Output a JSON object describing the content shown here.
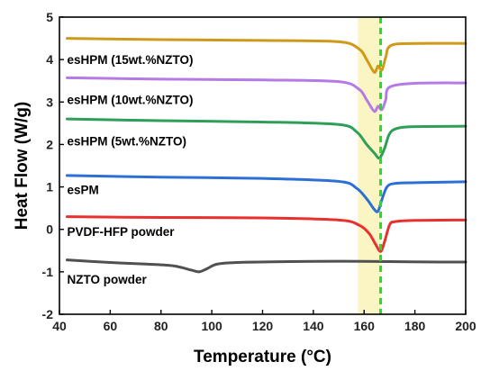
{
  "chart_data": {
    "type": "line",
    "xlabel": "Temperature (°C)",
    "ylabel": "Heat Flow (W/g)",
    "xlim": [
      40,
      200
    ],
    "ylim": [
      -2,
      5
    ],
    "xticks": [
      40,
      60,
      80,
      100,
      120,
      140,
      160,
      180,
      200
    ],
    "yticks": [
      -2,
      -1,
      0,
      1,
      2,
      3,
      4,
      5
    ],
    "grid": false,
    "legend": "none",
    "highlight_band": {
      "x": [
        157.5,
        166.5
      ],
      "color": "#fbf5c4"
    },
    "reference_line": {
      "x": 166.5,
      "color": "#22dd22",
      "style": "dashed"
    },
    "series": [
      {
        "name": "NZTO powder",
        "color": "#505050",
        "x": [
          43,
          60,
          75,
          85,
          92,
          95,
          98,
          102,
          110,
          130,
          150,
          170,
          190,
          200
        ],
        "y": [
          -0.72,
          -0.78,
          -0.82,
          -0.86,
          -0.96,
          -1.0,
          -0.93,
          -0.82,
          -0.78,
          -0.76,
          -0.75,
          -0.76,
          -0.77,
          -0.77
        ]
      },
      {
        "name": "PVDF-HFP powder",
        "color": "#e8312f",
        "x": [
          43,
          80,
          120,
          150,
          158,
          162,
          164.5,
          166.5,
          168,
          170,
          172,
          180,
          200
        ],
        "y": [
          0.3,
          0.28,
          0.27,
          0.22,
          0.1,
          -0.1,
          -0.35,
          -0.52,
          -0.3,
          0.1,
          0.18,
          0.21,
          0.22
        ]
      },
      {
        "name": "esPM",
        "color": "#2e6fd6",
        "x": [
          43,
          80,
          120,
          150,
          157,
          161,
          164,
          165.5,
          167,
          169,
          172,
          180,
          200
        ],
        "y": [
          1.27,
          1.23,
          1.2,
          1.13,
          0.97,
          0.72,
          0.47,
          0.43,
          0.7,
          1.0,
          1.08,
          1.1,
          1.12
        ]
      },
      {
        "name": "esHPM (5wt.%NZTO)",
        "color": "#2f9e58",
        "x": [
          43,
          80,
          120,
          150,
          157,
          161,
          164,
          166,
          168,
          170,
          173,
          180,
          200
        ],
        "y": [
          2.6,
          2.56,
          2.53,
          2.47,
          2.3,
          2.0,
          1.8,
          1.68,
          1.9,
          2.25,
          2.38,
          2.42,
          2.43
        ]
      },
      {
        "name": "esHPM (10wt.%NZTO)",
        "color": "#b47ae6",
        "x": [
          43,
          80,
          120,
          150,
          158,
          161,
          164,
          165.5,
          167,
          168.5,
          170,
          180,
          200
        ],
        "y": [
          3.57,
          3.54,
          3.52,
          3.48,
          3.3,
          3.05,
          2.78,
          2.9,
          2.82,
          3.05,
          3.35,
          3.44,
          3.45
        ]
      },
      {
        "name": "esHPM (15wt.%NZTO)",
        "color": "#cf9a1a",
        "x": [
          43,
          80,
          120,
          150,
          158,
          161,
          164,
          165.5,
          167,
          168.5,
          170.5,
          180,
          200
        ],
        "y": [
          4.5,
          4.47,
          4.45,
          4.42,
          4.25,
          4.0,
          3.7,
          3.85,
          3.75,
          4.05,
          4.33,
          4.38,
          4.38
        ]
      }
    ],
    "annotations": [
      {
        "text": "esHPM (15wt.%NZTO)",
        "x": 43,
        "y": 3.9
      },
      {
        "text": "esHPM (10wt.%NZTO)",
        "x": 43,
        "y": 2.95
      },
      {
        "text": "esHPM (5wt.%NZTO)",
        "x": 43,
        "y": 1.98
      },
      {
        "text": "esPM",
        "x": 43,
        "y": 0.83
      },
      {
        "text": "PVDF-HFP powder",
        "x": 43,
        "y": -0.15
      },
      {
        "text": "NZTO powder",
        "x": 43,
        "y": -1.28
      }
    ]
  }
}
